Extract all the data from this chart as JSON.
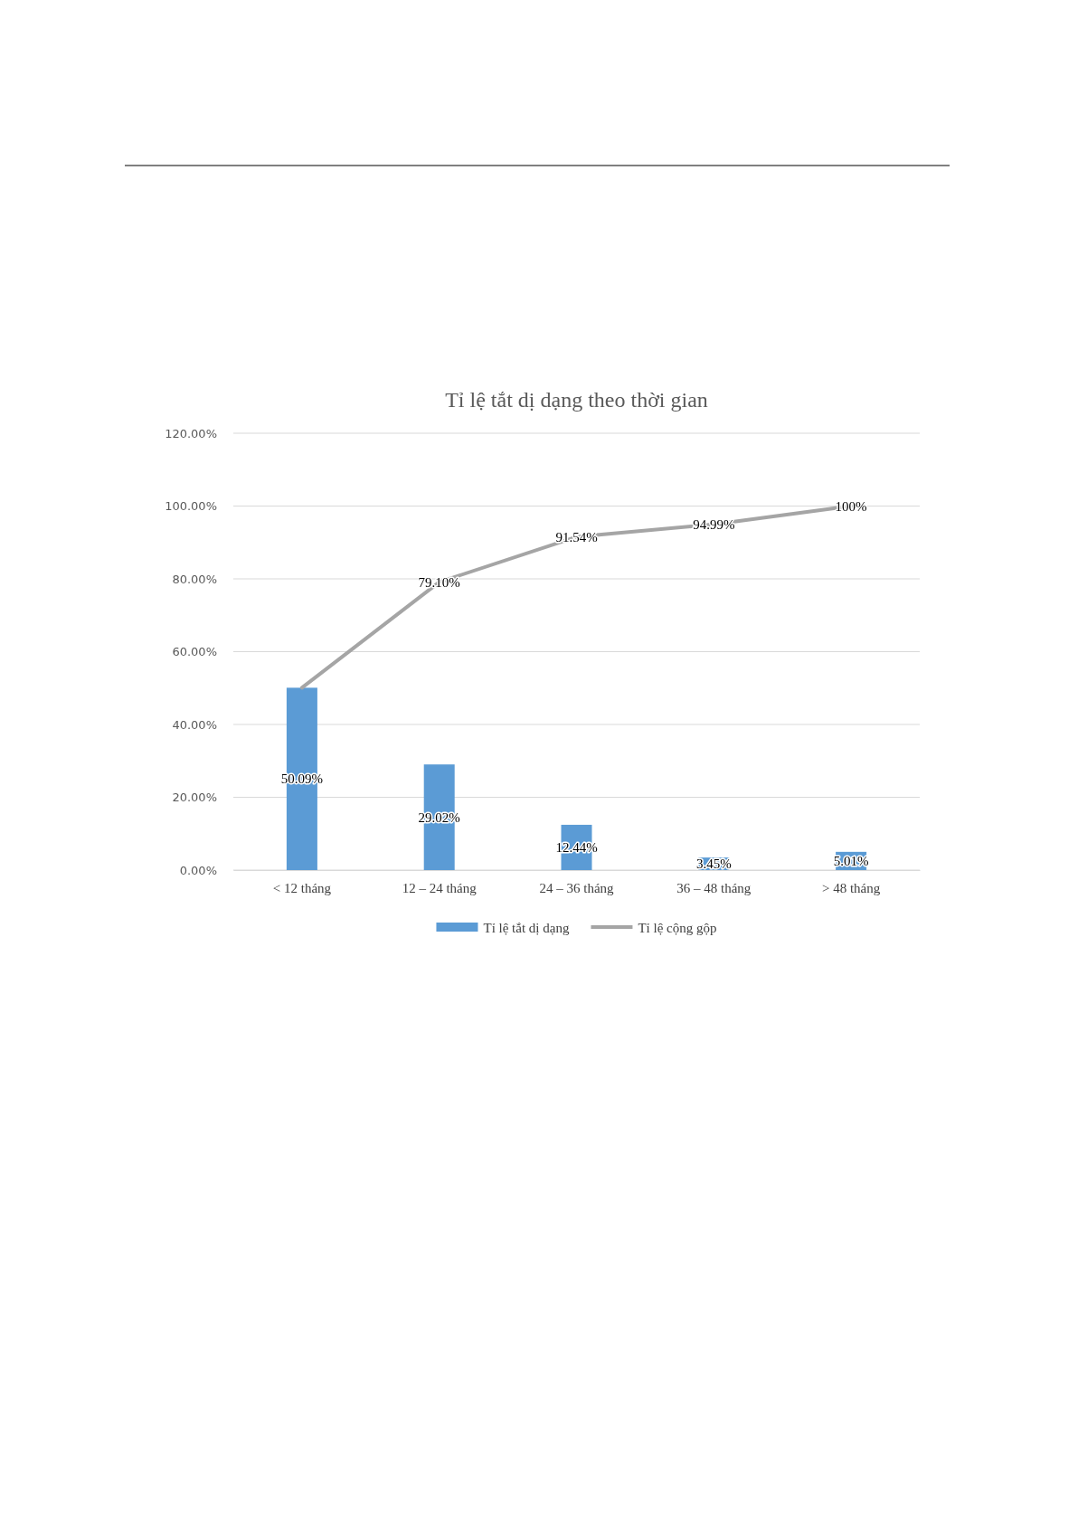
{
  "chart_data": {
    "type": "bar",
    "title": "Tỉ lệ tắt dị dạng  theo thời gian",
    "categories": [
      "< 12 tháng",
      "12 – 24 tháng",
      "24 – 36 tháng",
      "36 – 48 tháng",
      "> 48 tháng"
    ],
    "series": [
      {
        "name": "Tỉ lệ tắt dị dạng",
        "color": "#5b9bd5",
        "values": [
          50.09,
          29.02,
          12.44,
          3.45,
          5.01
        ],
        "value_labels": [
          "50.09%",
          "29.02%",
          "12.44%",
          "3.45%",
          "5.01%"
        ]
      },
      {
        "name": "Tỉ lệ cộng gộp",
        "type": "line",
        "color": "#a5a5a5",
        "values": [
          50.09,
          79.1,
          91.54,
          94.99,
          100
        ],
        "value_labels": [
          null,
          "79.10%",
          "91.54%",
          "94.99%",
          "100%"
        ]
      }
    ],
    "ylim": [
      0,
      120
    ],
    "yticks": [
      {
        "value": 0,
        "label": "0.00%"
      },
      {
        "value": 20,
        "label": "20.00%"
      },
      {
        "value": 40,
        "label": "40.00%"
      },
      {
        "value": 60,
        "label": "60.00%"
      },
      {
        "value": 80,
        "label": "80.00%"
      },
      {
        "value": 100,
        "label": "100.00%"
      },
      {
        "value": 120,
        "label": "120.00%"
      }
    ],
    "grid": "y",
    "legend": "bottom",
    "marker": "none",
    "line_style": "solid"
  }
}
